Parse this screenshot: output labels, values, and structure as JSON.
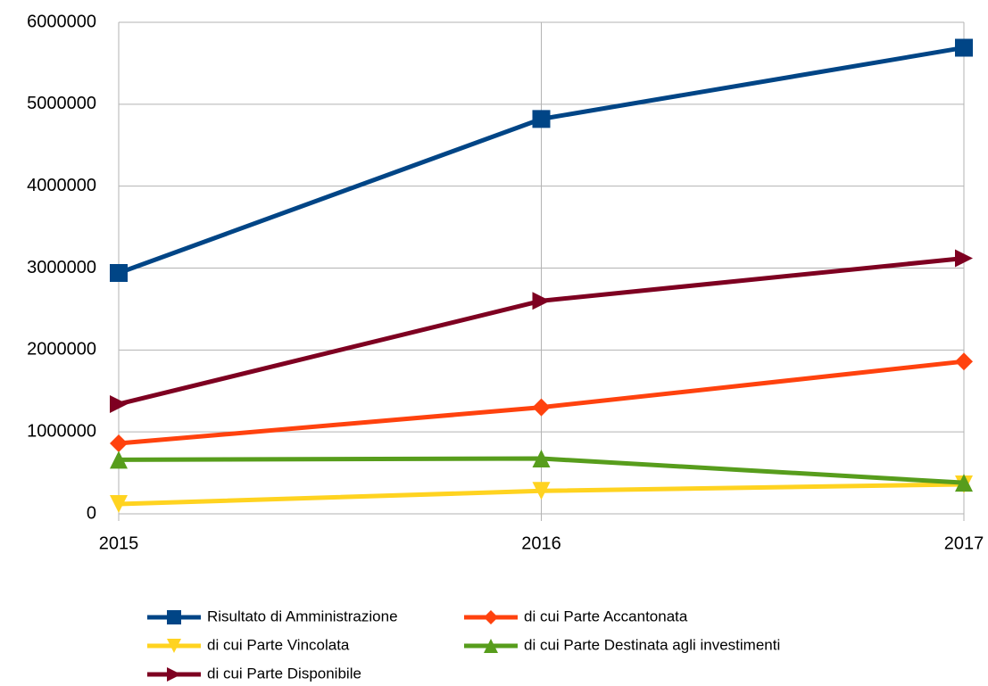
{
  "chart_data": {
    "type": "line",
    "categories": [
      "2015",
      "2016",
      "2017"
    ],
    "series": [
      {
        "name": "Risultato di Amministrazione",
        "color": "#004586",
        "marker": "square",
        "values": [
          2940000,
          4820000,
          5690000
        ]
      },
      {
        "name": "di cui Parte Accantonata",
        "color": "#ff420e",
        "marker": "diamond",
        "values": [
          860000,
          1300000,
          1860000
        ]
      },
      {
        "name": "di cui Parte Vincolata",
        "color": "#ffd320",
        "marker": "triangle-down",
        "values": [
          120000,
          280000,
          360000
        ]
      },
      {
        "name": "di cui Parte Destinata agli investimenti",
        "color": "#579d1c",
        "marker": "triangle-up",
        "values": [
          660000,
          675000,
          380000
        ]
      },
      {
        "name": "di cui Parte Disponibile",
        "color": "#7e0021",
        "marker": "triangle-right",
        "values": [
          1340000,
          2600000,
          3120000
        ]
      }
    ],
    "ylim": [
      0,
      6000000
    ],
    "yticks": [
      0,
      1000000,
      2000000,
      3000000,
      4000000,
      5000000,
      6000000
    ],
    "grid": true,
    "legend": "bottom"
  }
}
